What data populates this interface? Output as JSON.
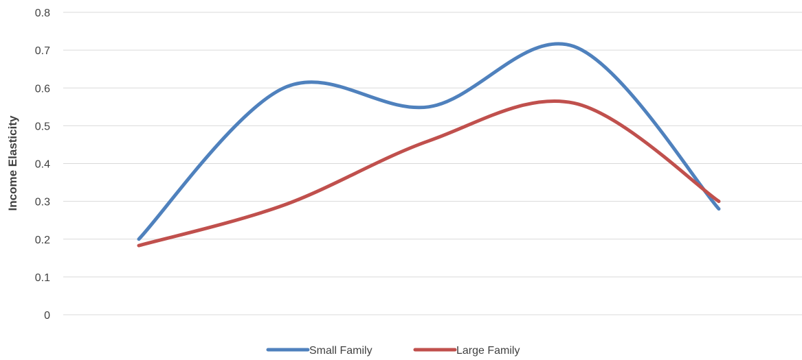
{
  "chart_data": {
    "type": "line",
    "title": "",
    "xlabel": "",
    "ylabel": "Income Elasticity",
    "ylim": [
      0,
      0.8
    ],
    "yticks": [
      "0",
      "0.1",
      "0.2",
      "0.3",
      "0.4",
      "0.5",
      "0.6",
      "0.7",
      "0.8"
    ],
    "x": [
      1,
      2,
      3,
      4,
      5
    ],
    "grid": true,
    "smooth": true,
    "legend_position": "bottom",
    "series": [
      {
        "name": "Small Family",
        "color": "#4f81bd",
        "values": [
          0.2,
          0.6,
          0.55,
          0.71,
          0.28
        ]
      },
      {
        "name": "Large Family",
        "color": "#c0504d",
        "values": [
          0.183,
          0.29,
          0.46,
          0.56,
          0.3
        ]
      }
    ]
  }
}
